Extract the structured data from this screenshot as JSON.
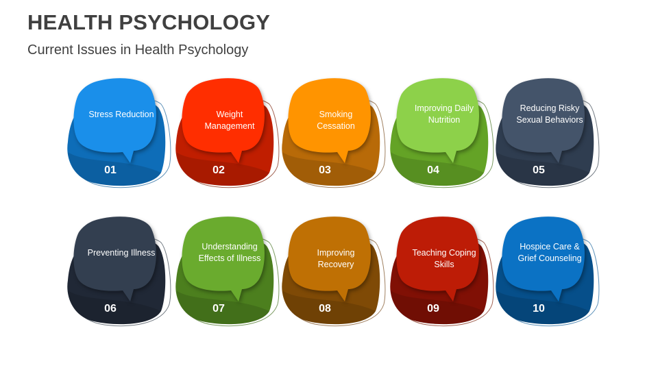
{
  "slide": {
    "title": "HEALTH PSYCHOLOGY",
    "subtitle": "Current Issues in Health Psychology"
  },
  "items": [
    {
      "num": "01",
      "label": "Stress Reduction",
      "dark": "#0E6DB8",
      "light": "#1A8FEA",
      "outline": "#5A8FB8"
    },
    {
      "num": "02",
      "label": "Weight Management",
      "dark": "#C01E00",
      "light": "#FF2E00",
      "outline": "#A06050"
    },
    {
      "num": "03",
      "label": "Smoking Cessation",
      "dark": "#B86A08",
      "light": "#FF9400",
      "outline": "#A08060"
    },
    {
      "num": "04",
      "label": "Improving Daily Nutrition",
      "dark": "#64A326",
      "light": "#8DD14A",
      "outline": "#7A9A60"
    },
    {
      "num": "05",
      "label": "Reducing Risky Sexual Behaviors",
      "dark": "#2F3D50",
      "light": "#44546A",
      "outline": "#707880"
    },
    {
      "num": "06",
      "label": "Preventing Illness",
      "dark": "#202836",
      "light": "#333F50",
      "outline": "#707880"
    },
    {
      "num": "07",
      "label": "Understanding Effects of Illness",
      "dark": "#4C7F1E",
      "light": "#6AAB2E",
      "outline": "#7A9A60"
    },
    {
      "num": "08",
      "label": "Improving Recovery",
      "dark": "#7F4A06",
      "light": "#BF7004",
      "outline": "#A08060"
    },
    {
      "num": "09",
      "label": "Teaching Coping Skills",
      "dark": "#801005",
      "light": "#BD1C06",
      "outline": "#A06050"
    },
    {
      "num": "10",
      "label": "Hospice Care & Grief Counseling",
      "dark": "#064F8A",
      "light": "#0B72C4",
      "outline": "#5A8FB8"
    }
  ]
}
